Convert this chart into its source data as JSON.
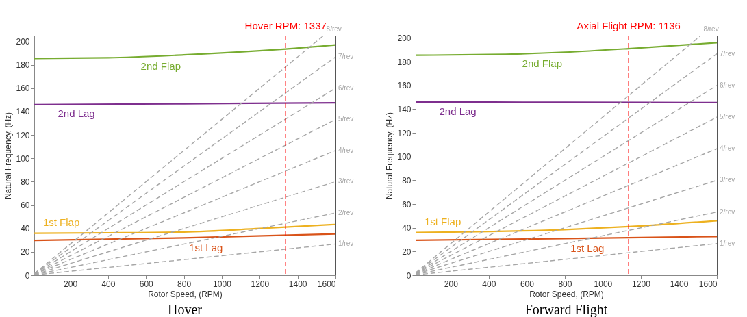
{
  "chart_data": [
    {
      "type": "line",
      "title": "Hover",
      "xlabel": "Rotor Speed, (RPM)",
      "ylabel": "Natural Frequency, (Hz)",
      "xlim": [
        10,
        1600
      ],
      "ylim": [
        0,
        205
      ],
      "xticks": [
        200,
        400,
        600,
        800,
        1000,
        1200,
        1400,
        1600
      ],
      "yticks": [
        0,
        20,
        40,
        60,
        80,
        100,
        120,
        140,
        160,
        180,
        200
      ],
      "grid": false,
      "line_style": "solid",
      "series": [
        {
          "name": "2nd Flap",
          "color": "#77ac30",
          "x": [
            10,
            400,
            800,
            1200,
            1337,
            1600
          ],
          "values": [
            185.5,
            186,
            188.5,
            192,
            193.5,
            197
          ]
        },
        {
          "name": "2nd Lag",
          "color": "#7e2f8e",
          "x": [
            10,
            800,
            1600
          ],
          "values": [
            146,
            146.7,
            147.5
          ]
        },
        {
          "name": "1st Flap",
          "color": "#edb120",
          "x": [
            10,
            400,
            800,
            1200,
            1600
          ],
          "values": [
            36,
            36.3,
            37,
            40,
            43.5
          ]
        },
        {
          "name": "1st Lag",
          "color": "#d95319",
          "x": [
            10,
            800,
            1600
          ],
          "values": [
            29.8,
            32,
            35.4
          ]
        },
        {
          "name": "1/rev",
          "color": "#a6a6a6",
          "line_style": "dashed",
          "x": [
            10,
            1600
          ],
          "values": [
            0.2,
            26.7
          ]
        },
        {
          "name": "2/rev",
          "color": "#a6a6a6",
          "line_style": "dashed",
          "x": [
            10,
            1600
          ],
          "values": [
            0.3,
            53.3
          ]
        },
        {
          "name": "3/rev",
          "color": "#a6a6a6",
          "line_style": "dashed",
          "x": [
            10,
            1600
          ],
          "values": [
            0.5,
            80
          ]
        },
        {
          "name": "4/rev",
          "color": "#a6a6a6",
          "line_style": "dashed",
          "x": [
            10,
            1600
          ],
          "values": [
            0.7,
            106.7
          ]
        },
        {
          "name": "5/rev",
          "color": "#a6a6a6",
          "line_style": "dashed",
          "x": [
            10,
            1600
          ],
          "values": [
            0.8,
            133.3
          ]
        },
        {
          "name": "6/rev",
          "color": "#a6a6a6",
          "line_style": "dashed",
          "x": [
            10,
            1600
          ],
          "values": [
            1,
            160
          ]
        },
        {
          "name": "7/rev",
          "color": "#a6a6a6",
          "line_style": "dashed",
          "x": [
            10,
            1600
          ],
          "values": [
            1.2,
            186.7
          ]
        },
        {
          "name": "8/rev",
          "color": "#a6a6a6",
          "line_style": "dashed",
          "x": [
            10,
            1537
          ],
          "values": [
            1.3,
            205
          ]
        }
      ],
      "ref_lines": [
        {
          "axis": "x",
          "value": 1337,
          "label": "Hover RPM: 1337",
          "color": "#ff0000",
          "line_style": "dashed"
        }
      ]
    },
    {
      "type": "line",
      "title": "Forward Flight",
      "xlabel": "Rotor Speed, (RPM)",
      "ylabel": "Natural Frequency, (Hz)",
      "xlim": [
        15,
        1600
      ],
      "ylim": [
        0,
        202
      ],
      "xticks": [
        200,
        400,
        600,
        800,
        1000,
        1200,
        1400,
        1600
      ],
      "yticks": [
        0,
        20,
        40,
        60,
        80,
        100,
        120,
        140,
        160,
        180,
        200
      ],
      "grid": false,
      "line_style": "solid",
      "series": [
        {
          "name": "2nd Flap",
          "color": "#77ac30",
          "x": [
            15,
            400,
            800,
            1136,
            1600
          ],
          "values": [
            185.5,
            186,
            188,
            191,
            196
          ]
        },
        {
          "name": "2nd Lag",
          "color": "#7e2f8e",
          "x": [
            15,
            800,
            1600
          ],
          "values": [
            146,
            145.8,
            145.5
          ]
        },
        {
          "name": "1st Flap",
          "color": "#edb120",
          "x": [
            15,
            400,
            800,
            1136,
            1600
          ],
          "values": [
            36,
            36.8,
            38.5,
            41,
            46
          ]
        },
        {
          "name": "1st Lag",
          "color": "#d95319",
          "x": [
            15,
            800,
            1600
          ],
          "values": [
            29.5,
            31,
            32.7
          ]
        },
        {
          "name": "1/rev",
          "color": "#a6a6a6",
          "line_style": "dashed",
          "x": [
            15,
            1600
          ],
          "values": [
            0.3,
            26.7
          ]
        },
        {
          "name": "2/rev",
          "color": "#a6a6a6",
          "line_style": "dashed",
          "x": [
            15,
            1600
          ],
          "values": [
            0.5,
            53.3
          ]
        },
        {
          "name": "3/rev",
          "color": "#a6a6a6",
          "line_style": "dashed",
          "x": [
            15,
            1600
          ],
          "values": [
            0.8,
            80
          ]
        },
        {
          "name": "4/rev",
          "color": "#a6a6a6",
          "line_style": "dashed",
          "x": [
            15,
            1600
          ],
          "values": [
            1,
            106.7
          ]
        },
        {
          "name": "5/rev",
          "color": "#a6a6a6",
          "line_style": "dashed",
          "x": [
            15,
            1600
          ],
          "values": [
            1.3,
            133.3
          ]
        },
        {
          "name": "6/rev",
          "color": "#a6a6a6",
          "line_style": "dashed",
          "x": [
            15,
            1600
          ],
          "values": [
            1.5,
            160
          ]
        },
        {
          "name": "7/rev",
          "color": "#a6a6a6",
          "line_style": "dashed",
          "x": [
            15,
            1600
          ],
          "values": [
            1.8,
            186.7
          ]
        },
        {
          "name": "8/rev",
          "color": "#a6a6a6",
          "line_style": "dashed",
          "x": [
            15,
            1515
          ],
          "values": [
            2,
            202
          ]
        }
      ],
      "ref_lines": [
        {
          "axis": "x",
          "value": 1136,
          "label": "Axial Flight RPM: 1136",
          "color": "#ff0000",
          "line_style": "dashed"
        }
      ]
    }
  ]
}
